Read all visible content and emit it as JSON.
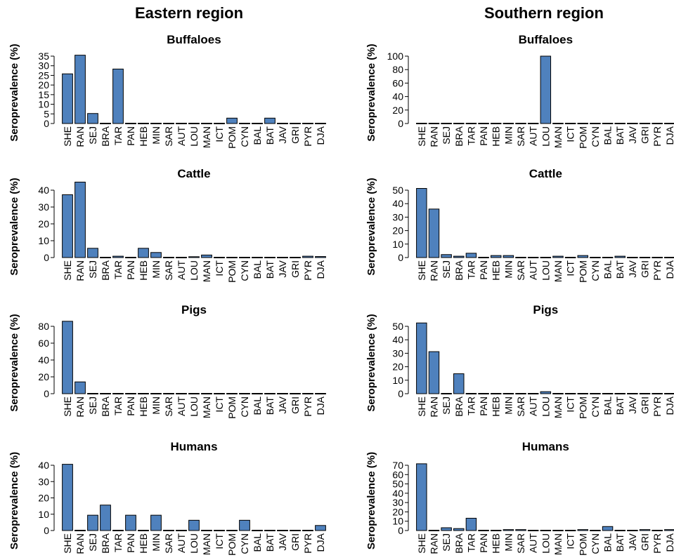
{
  "regions": [
    {
      "title": "Eastern region"
    },
    {
      "title": "Southern region"
    }
  ],
  "bar_color": "#4f81bd",
  "chart_data": [
    {
      "type": "bar",
      "region": "Eastern region",
      "title": "Buffaloes",
      "xlabel": "",
      "ylabel": "Seroprevalence (%)",
      "categories": [
        "SHE",
        "RAN",
        "SEJ",
        "BRA",
        "TAR",
        "PAN",
        "HEB",
        "MIN",
        "SAR",
        "AUT",
        "LOU",
        "MAN",
        "ICT",
        "POM",
        "CYN",
        "BAL",
        "BAT",
        "JAV",
        "GRI",
        "PYR",
        "DJA"
      ],
      "values": [
        25.8,
        35.5,
        5.2,
        0,
        28.3,
        0,
        0,
        0,
        0,
        0,
        0,
        0,
        0,
        2.8,
        0,
        0,
        2.8,
        0,
        0,
        0,
        0
      ],
      "ylim": [
        0,
        35
      ],
      "yticks": [
        0,
        5,
        10,
        15,
        20,
        25,
        30,
        35
      ]
    },
    {
      "type": "bar",
      "region": "Southern region",
      "title": "Buffaloes",
      "xlabel": "",
      "ylabel": "Seroprevalence (%)",
      "categories": [
        "SHE",
        "RAN",
        "SEJ",
        "BRA",
        "TAR",
        "PAN",
        "HEB",
        "MIN",
        "SAR",
        "AUT",
        "LOU",
        "MAN",
        "ICT",
        "POM",
        "CYN",
        "BAL",
        "BAT",
        "JAV",
        "GRI",
        "PYR",
        "DJA"
      ],
      "values": [
        0,
        0,
        0,
        0,
        0,
        0,
        0,
        0,
        0,
        0,
        100,
        0,
        0,
        0,
        0,
        0,
        0,
        0,
        0,
        0,
        0
      ],
      "ylim": [
        0,
        100
      ],
      "yticks": [
        0,
        20,
        40,
        60,
        80,
        100
      ]
    },
    {
      "type": "bar",
      "region": "Eastern region",
      "title": "Cattle",
      "xlabel": "",
      "ylabel": "Seroprevalence (%)",
      "categories": [
        "SHE",
        "RAN",
        "SEJ",
        "BRA",
        "TAR",
        "PAN",
        "HEB",
        "MIN",
        "SAR",
        "AUT",
        "LOU",
        "MAN",
        "ICT",
        "POM",
        "CYN",
        "BAL",
        "BAT",
        "JAV",
        "GRI",
        "PYR",
        "DJA"
      ],
      "values": [
        37.3,
        44.8,
        5.5,
        0,
        0.8,
        0,
        5.5,
        3.0,
        0,
        0,
        0.5,
        1.5,
        0,
        0,
        0,
        0,
        0,
        0,
        0,
        0.8,
        0.6
      ],
      "ylim": [
        0,
        40
      ],
      "yticks": [
        0,
        10,
        20,
        30,
        40
      ]
    },
    {
      "type": "bar",
      "region": "Southern region",
      "title": "Cattle",
      "xlabel": "",
      "ylabel": "Seroprevalence (%)",
      "categories": [
        "SHE",
        "RAN",
        "SEJ",
        "BRA",
        "TAR",
        "PAN",
        "HEB",
        "MIN",
        "SAR",
        "AUT",
        "LOU",
        "MAN",
        "ICT",
        "POM",
        "CYN",
        "BAL",
        "BAT",
        "JAV",
        "GRI",
        "PYR",
        "DJA"
      ],
      "values": [
        51.3,
        36.0,
        2.2,
        1.0,
        3.2,
        0,
        1.5,
        1.5,
        0,
        0,
        0,
        1.0,
        0,
        1.5,
        0,
        0,
        1.0,
        0,
        0,
        0,
        0
      ],
      "ylim": [
        0,
        50
      ],
      "yticks": [
        0,
        10,
        20,
        30,
        40,
        50
      ]
    },
    {
      "type": "bar",
      "region": "Eastern region",
      "title": "Pigs",
      "xlabel": "",
      "ylabel": "Seroprevalence (%)",
      "categories": [
        "SHE",
        "RAN",
        "SEJ",
        "BRA",
        "TAR",
        "PAN",
        "HEB",
        "MIN",
        "SAR",
        "AUT",
        "LOU",
        "MAN",
        "ICT",
        "POM",
        "CYN",
        "BAL",
        "BAT",
        "JAV",
        "GRI",
        "PYR",
        "DJA"
      ],
      "values": [
        86,
        14,
        0,
        0,
        0,
        0,
        0,
        0,
        0,
        0,
        0,
        0,
        0,
        0,
        0,
        0,
        0,
        0,
        0,
        0,
        0
      ],
      "ylim": [
        0,
        80
      ],
      "yticks": [
        0,
        20,
        40,
        60,
        80
      ]
    },
    {
      "type": "bar",
      "region": "Southern region",
      "title": "Pigs",
      "xlabel": "",
      "ylabel": "Seroprevalence (%)",
      "categories": [
        "SHE",
        "RAN",
        "SEJ",
        "BRA",
        "TAR",
        "PAN",
        "HEB",
        "MIN",
        "SAR",
        "AUT",
        "LOU",
        "MAN",
        "ICT",
        "POM",
        "CYN",
        "BAL",
        "BAT",
        "JAV",
        "GRI",
        "PYR",
        "DJA"
      ],
      "values": [
        52.5,
        31.2,
        0,
        14.8,
        0,
        0,
        0,
        0,
        0,
        0,
        1.5,
        0,
        0,
        0,
        0,
        0,
        0,
        0,
        0,
        0,
        0
      ],
      "ylim": [
        0,
        50
      ],
      "yticks": [
        0,
        10,
        20,
        30,
        40,
        50
      ]
    },
    {
      "type": "bar",
      "region": "Eastern region",
      "title": "Humans",
      "xlabel": "",
      "ylabel": "Seroprevalence (%)",
      "categories": [
        "SHE",
        "RAN",
        "SEJ",
        "BRA",
        "TAR",
        "PAN",
        "HEB",
        "MIN",
        "SAR",
        "AUT",
        "LOU",
        "MAN",
        "ICT",
        "POM",
        "CYN",
        "BAL",
        "BAT",
        "JAV",
        "GRI",
        "PYR",
        "DJA"
      ],
      "values": [
        40.6,
        0,
        9.4,
        15.6,
        0,
        9.4,
        0,
        9.4,
        0,
        0,
        6.3,
        0,
        0,
        0,
        6.3,
        0,
        0,
        0,
        0,
        0,
        3.1
      ],
      "ylim": [
        0,
        40
      ],
      "yticks": [
        0,
        10,
        20,
        30,
        40
      ]
    },
    {
      "type": "bar",
      "region": "Southern region",
      "title": "Humans",
      "xlabel": "",
      "ylabel": "Seroprevalence (%)",
      "categories": [
        "SHE",
        "RAN",
        "SEJ",
        "BRA",
        "TAR",
        "PAN",
        "HEB",
        "MIN",
        "SAR",
        "AUT",
        "LOU",
        "MAN",
        "ICT",
        "POM",
        "CYN",
        "BAL",
        "BAT",
        "JAV",
        "GRI",
        "PYR",
        "DJA"
      ],
      "values": [
        71.6,
        0,
        3.0,
        2.1,
        13.2,
        0,
        0,
        1.0,
        1.0,
        0,
        0,
        0,
        0,
        1.0,
        0,
        4.3,
        0,
        0,
        1.0,
        0,
        1.0
      ],
      "ylim": [
        0,
        70
      ],
      "yticks": [
        0,
        10,
        20,
        30,
        40,
        50,
        60,
        70
      ]
    }
  ]
}
